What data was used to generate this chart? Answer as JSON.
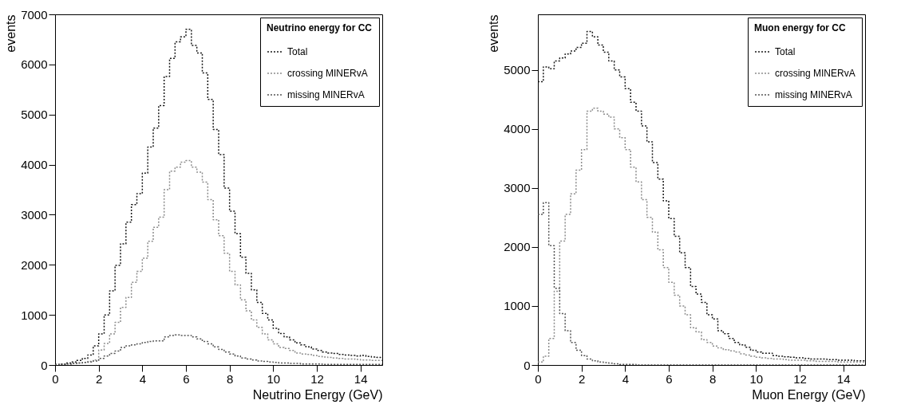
{
  "chart_data": [
    {
      "type": "histogram",
      "legend_title": "Neutrino energy for CC",
      "xlabel": "Neutrino Energy (GeV)",
      "ylabel": "events",
      "xlim": [
        0,
        15
      ],
      "xticks": [
        0,
        2,
        4,
        6,
        8,
        10,
        12,
        14
      ],
      "ylim": [
        0,
        7000
      ],
      "yticks": [
        0,
        1000,
        2000,
        3000,
        4000,
        5000,
        6000,
        7000
      ],
      "grid": false,
      "legend": "top right",
      "line_style": "dotted",
      "bins": [
        0,
        0.25,
        0.5,
        0.75,
        1,
        1.25,
        1.5,
        1.75,
        2,
        2.25,
        2.5,
        2.75,
        3,
        3.25,
        3.5,
        3.75,
        4,
        4.25,
        4.5,
        4.75,
        5,
        5.25,
        5.5,
        5.75,
        6,
        6.25,
        6.5,
        6.75,
        7,
        7.25,
        7.5,
        7.75,
        8,
        8.25,
        8.5,
        8.75,
        9,
        9.25,
        9.5,
        9.75,
        10,
        10.25,
        10.5,
        10.75,
        11,
        11.25,
        11.5,
        11.75,
        12,
        12.25,
        12.5,
        12.75,
        13,
        13.25,
        13.5,
        13.75,
        14,
        14.25,
        14.5,
        14.75,
        15
      ],
      "series": [
        {
          "name": "Total",
          "color": "#1a1a1a",
          "values": [
            10,
            20,
            40,
            60,
            90,
            130,
            200,
            380,
            620,
            1000,
            1480,
            1990,
            2420,
            2850,
            3200,
            3420,
            3830,
            4350,
            4730,
            5180,
            5760,
            6120,
            6450,
            6550,
            6700,
            6380,
            6230,
            5830,
            5300,
            4700,
            4200,
            3530,
            3070,
            2620,
            2150,
            1830,
            1500,
            1250,
            1030,
            900,
            730,
            630,
            560,
            500,
            440,
            400,
            360,
            320,
            290,
            260,
            240,
            230,
            210,
            200,
            190,
            180,
            190,
            170,
            160,
            150
          ]
        },
        {
          "name": "crossing MINERvA",
          "color": "#8c8c8c",
          "values": [
            0,
            10,
            20,
            30,
            40,
            50,
            70,
            100,
            300,
            430,
            620,
            850,
            1150,
            1350,
            1650,
            1870,
            2130,
            2470,
            2750,
            2950,
            3500,
            3870,
            3950,
            4050,
            4080,
            3950,
            3850,
            3650,
            3300,
            2900,
            2580,
            2230,
            1870,
            1600,
            1300,
            1080,
            900,
            750,
            620,
            500,
            420,
            350,
            330,
            290,
            240,
            220,
            210,
            190,
            170,
            160,
            150,
            140,
            130,
            120,
            120,
            110,
            100,
            100,
            90,
            90
          ]
        },
        {
          "name": "missing MINERvA",
          "color": "#555555",
          "values": [
            0,
            10,
            20,
            30,
            40,
            50,
            60,
            80,
            130,
            180,
            230,
            280,
            350,
            380,
            400,
            420,
            450,
            470,
            480,
            480,
            560,
            590,
            600,
            590,
            590,
            560,
            520,
            470,
            420,
            360,
            310,
            260,
            220,
            180,
            140,
            120,
            100,
            80,
            70,
            60,
            50,
            40,
            40,
            30,
            30,
            20,
            20,
            20,
            20,
            10,
            10,
            10,
            10,
            10,
            10,
            10,
            10,
            10,
            10,
            10
          ]
        }
      ]
    },
    {
      "type": "histogram",
      "legend_title": "Muon energy for CC",
      "xlabel": "Muon Energy (GeV)",
      "ylabel": "events",
      "xlim": [
        0,
        15
      ],
      "xticks": [
        0,
        2,
        4,
        6,
        8,
        10,
        12,
        14
      ],
      "ylim": [
        0,
        5940
      ],
      "yticks": [
        0,
        1000,
        2000,
        3000,
        4000,
        5000
      ],
      "grid": false,
      "legend": "top right",
      "line_style": "dotted",
      "bins": [
        0,
        0.25,
        0.5,
        0.75,
        1,
        1.25,
        1.5,
        1.75,
        2,
        2.25,
        2.5,
        2.75,
        3,
        3.25,
        3.5,
        3.75,
        4,
        4.25,
        4.5,
        4.75,
        5,
        5.25,
        5.5,
        5.75,
        6,
        6.25,
        6.5,
        6.75,
        7,
        7.25,
        7.5,
        7.75,
        8,
        8.25,
        8.5,
        8.75,
        9,
        9.25,
        9.5,
        9.75,
        10,
        10.25,
        10.5,
        10.75,
        11,
        11.25,
        11.5,
        11.75,
        12,
        12.25,
        12.5,
        12.75,
        13,
        13.25,
        13.5,
        13.75,
        14,
        14.25,
        14.5,
        14.75,
        15
      ],
      "series": [
        {
          "name": "Total",
          "color": "#1a1a1a",
          "values": [
            4800,
            5050,
            5020,
            5150,
            5200,
            5270,
            5320,
            5380,
            5450,
            5650,
            5560,
            5420,
            5300,
            5150,
            5000,
            4880,
            4680,
            4450,
            4300,
            4050,
            3780,
            3430,
            3150,
            2780,
            2480,
            2180,
            1900,
            1650,
            1330,
            1200,
            1060,
            850,
            780,
            580,
            530,
            450,
            380,
            340,
            300,
            250,
            220,
            200,
            200,
            160,
            150,
            140,
            130,
            120,
            120,
            110,
            100,
            100,
            100,
            90,
            90,
            80,
            80,
            80,
            70,
            70
          ]
        },
        {
          "name": "crossing MINERvA",
          "color": "#8c8c8c",
          "values": [
            50,
            150,
            450,
            1250,
            2100,
            2550,
            2900,
            3300,
            3650,
            4300,
            4350,
            4300,
            4250,
            4200,
            4000,
            3850,
            3650,
            3350,
            3100,
            2800,
            2500,
            2250,
            1950,
            1650,
            1400,
            1180,
            1000,
            850,
            630,
            560,
            430,
            380,
            320,
            290,
            260,
            240,
            220,
            190,
            170,
            150,
            130,
            120,
            110,
            100,
            100,
            90,
            80,
            80,
            80,
            70,
            70,
            60,
            60,
            60,
            60,
            50,
            50,
            50,
            50,
            50
          ]
        },
        {
          "name": "missing MINERvA",
          "color": "#555555",
          "values": [
            2550,
            2750,
            2020,
            1300,
            870,
            580,
            380,
            250,
            160,
            100,
            70,
            50,
            40,
            30,
            20,
            10,
            10,
            10,
            0,
            0,
            0,
            0,
            0,
            0,
            0,
            0,
            0,
            0,
            0,
            0,
            0,
            0,
            0,
            0,
            0,
            0,
            0,
            0,
            0,
            0,
            0,
            0,
            0,
            0,
            0,
            0,
            0,
            0,
            0,
            0,
            0,
            0,
            0,
            0,
            0,
            0,
            0,
            0,
            0,
            0
          ]
        }
      ]
    }
  ]
}
